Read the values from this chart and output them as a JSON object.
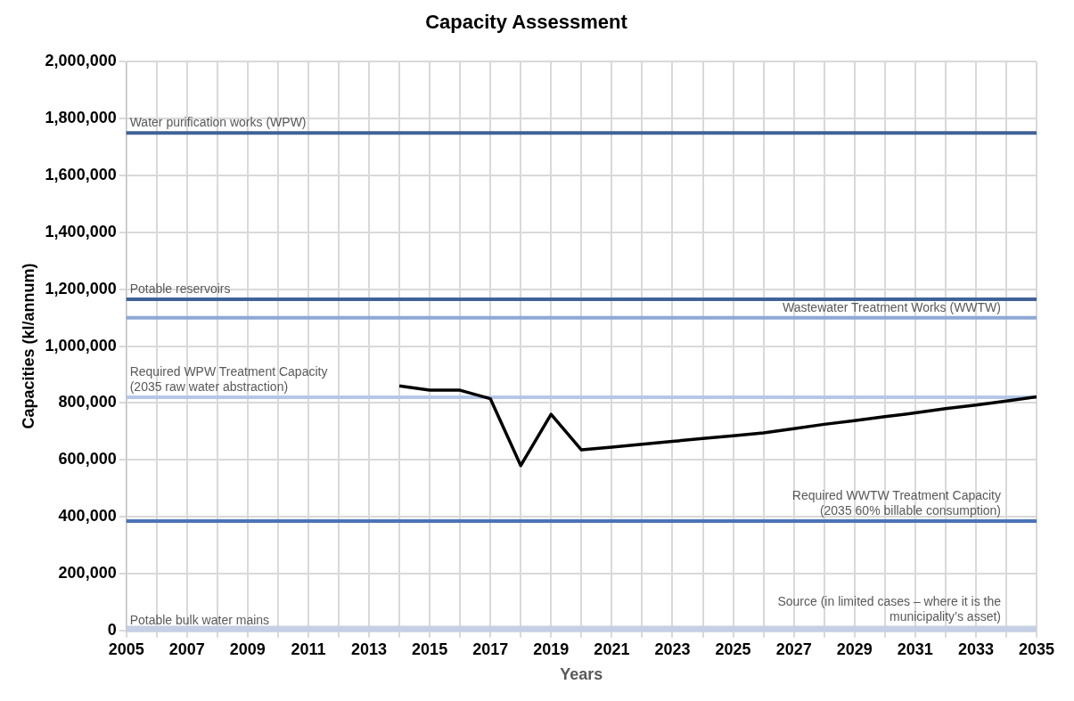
{
  "chart_data": {
    "type": "line",
    "title": "Capacity Assessment",
    "xlabel": "Years",
    "ylabel": "Capacities (kl/annum)",
    "series": [
      {
        "color": "#000000",
        "x": [
          2014,
          2015,
          2016,
          2017,
          2018,
          2019,
          2020,
          2021,
          2022,
          2023,
          2024,
          2025,
          2026,
          2027,
          2028,
          2029,
          2030,
          2031,
          2032,
          2033,
          2034,
          2035
        ],
        "values": [
          860000,
          845000,
          845000,
          815000,
          580000,
          760000,
          635000,
          645000,
          655000,
          665000,
          675000,
          685000,
          695000,
          710000,
          725000,
          738000,
          752000,
          765000,
          780000,
          793000,
          807000,
          822000
        ]
      }
    ],
    "ref_lines": [
      {
        "axis": "y",
        "value": 1750000,
        "label": "Water purification works (WPW)",
        "color": "#3f6396"
      },
      {
        "axis": "y",
        "value": 1165000,
        "label": "Potable reservoirs",
        "color": "#3f6396"
      },
      {
        "axis": "y",
        "value": 1100000,
        "label": "Wastewater Treatment Works (WWTW)",
        "color": "#8ea9d6"
      },
      {
        "axis": "y",
        "value": 820000,
        "label": "Required WPW Treatment Capacity (2035 raw water abstraction)",
        "color": "#b4c7e7"
      },
      {
        "axis": "y",
        "value": 385000,
        "label": "Required WWTW Treatment Capacity (2035 60% billable consumption)",
        "color": "#4a74b8"
      },
      {
        "axis": "y",
        "value": 0,
        "label": "Potable bulk water mains",
        "color": "#c5d0e4"
      },
      {
        "axis": "y",
        "value": 10000,
        "label": "Source (in limited cases – where it is the municipality’s asset)",
        "color": "#c5d0e4"
      }
    ],
    "xlim": [
      2005,
      2035
    ],
    "xticks": [
      2005,
      {
        "value": 2006,
        "label": null
      },
      2007,
      {
        "value": 2008,
        "label": null
      },
      2009,
      {
        "value": 2010,
        "label": null
      },
      2011,
      {
        "value": 2012,
        "label": null
      },
      2013,
      {
        "value": 2014,
        "label": null
      },
      2015,
      {
        "value": 2016,
        "label": null
      },
      2017,
      {
        "value": 2018,
        "label": null
      },
      2019,
      {
        "value": 2020,
        "label": null
      },
      2021,
      {
        "value": 2022,
        "label": null
      },
      2023,
      {
        "value": 2024,
        "label": null
      },
      2025,
      {
        "value": 2026,
        "label": null
      },
      2027,
      {
        "value": 2028,
        "label": null
      },
      2029,
      {
        "value": 2030,
        "label": null
      },
      2031,
      {
        "value": 2032,
        "label": null
      },
      2033,
      {
        "value": 2034,
        "label": null
      },
      2035
    ],
    "ylim": [
      0,
      2000000
    ],
    "yticks": [
      {
        "value": 0,
        "label": "0"
      },
      {
        "value": 200000,
        "label": "200,000"
      },
      {
        "value": 400000,
        "label": "400,000"
      },
      {
        "value": 600000,
        "label": "600,000"
      },
      {
        "value": 800000,
        "label": "800,000"
      },
      {
        "value": 1000000,
        "label": "1,000,000"
      },
      {
        "value": 1200000,
        "label": "1,200,000"
      },
      {
        "value": 1400000,
        "label": "1,400,000"
      },
      {
        "value": 1600000,
        "label": "1,600,000"
      },
      {
        "value": 1800000,
        "label": "1,800,000"
      },
      {
        "value": 2000000,
        "label": "2,000,000"
      }
    ],
    "grid": true,
    "legend": false,
    "marker": "none",
    "line_style": "solid"
  }
}
